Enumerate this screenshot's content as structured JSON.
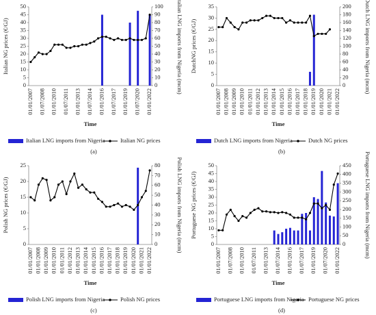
{
  "chart_data": [
    {
      "type": "bar_line",
      "panel_label": "(a)",
      "x_label": "Time",
      "y_label": "Italian NG prices (€/GJ)",
      "y2_label": "Italian LNG imports from Nigeria (mcm)",
      "categories": [
        "01/01/2007",
        null,
        null,
        "01/07/2008",
        null,
        null,
        "01/01/2010",
        null,
        null,
        "01/07/2011",
        null,
        null,
        "01/01/2013",
        null,
        null,
        "01/07/2014",
        null,
        null,
        "01/01/2016",
        null,
        null,
        "01/07/2017",
        null,
        null,
        "01/01/2019",
        null,
        null,
        "01/07/2020",
        null,
        null,
        "01/01/2022"
      ],
      "series": [
        {
          "name": "Italian LNG imports from Nigeria",
          "color": "#2424d4",
          "kind": "bar",
          "axis": "y2",
          "values": [
            null,
            null,
            null,
            null,
            null,
            null,
            null,
            null,
            null,
            null,
            null,
            null,
            null,
            null,
            null,
            null,
            null,
            null,
            90,
            null,
            null,
            null,
            null,
            null,
            null,
            80,
            null,
            95,
            null,
            null,
            90
          ]
        },
        {
          "name": "Italian NG prices",
          "color": "#000000",
          "kind": "line",
          "axis": "y",
          "values": [
            15,
            18,
            21,
            20,
            20,
            22,
            26,
            26,
            26,
            24,
            24,
            25,
            25,
            26,
            26,
            27,
            28,
            30,
            31,
            31,
            30,
            29,
            30,
            29,
            29,
            30,
            29,
            29,
            29,
            30,
            45
          ]
        }
      ],
      "ylim": [
        0,
        50
      ],
      "yticks": [
        0,
        5,
        10,
        15,
        20,
        25,
        30,
        35,
        40,
        45,
        50
      ],
      "y2lim": [
        0,
        100
      ],
      "y2ticks": [
        0,
        10,
        20,
        30,
        40,
        50,
        60,
        70,
        80,
        90,
        100
      ]
    },
    {
      "type": "bar_line",
      "panel_label": "(b)",
      "x_label": "Time",
      "y_label": "DutchNG prices (€/GJ)",
      "y2_label": "Dutch LNG imports from Nigeria (mcm)",
      "categories": [
        "01/01/2007",
        null,
        "01/01/2008",
        null,
        "01/01/2009",
        null,
        "01/01/2010",
        null,
        "01/01/2011",
        null,
        "01/01/2012",
        null,
        "01/01/2013",
        null,
        "01/01/2014",
        null,
        "01/01/2015",
        null,
        "01/01/2016",
        null,
        "01/01/2017",
        null,
        "01/01/2018",
        null,
        "01/01/2019",
        null,
        "01/01/2020",
        null,
        "01/01/2021",
        null,
        "01/01/2022"
      ],
      "series": [
        {
          "name": "Dutch LNG imports from Nigeria",
          "color": "#2424d4",
          "kind": "bar",
          "axis": "y2",
          "values": [
            null,
            null,
            null,
            null,
            null,
            null,
            null,
            null,
            null,
            null,
            null,
            null,
            null,
            null,
            null,
            null,
            null,
            null,
            null,
            null,
            null,
            null,
            null,
            35,
            180,
            null,
            null,
            null,
            null,
            null,
            null
          ]
        },
        {
          "name": "Dutch NG prices",
          "color": "#000000",
          "kind": "line",
          "axis": "y",
          "values": [
            26,
            26,
            30,
            28,
            26,
            25,
            28,
            28,
            29,
            29,
            29,
            30,
            31,
            31,
            30,
            30,
            30,
            28,
            29,
            28,
            28,
            28,
            28,
            31,
            22,
            23,
            23,
            23,
            25,
            null,
            null
          ]
        }
      ],
      "ylim": [
        0,
        35
      ],
      "yticks": [
        0,
        5,
        10,
        15,
        20,
        25,
        30,
        35
      ],
      "y2lim": [
        0,
        200
      ],
      "y2ticks": [
        0,
        20,
        40,
        60,
        80,
        100,
        120,
        140,
        160,
        180,
        200
      ]
    },
    {
      "type": "bar_line",
      "panel_label": "(c)",
      "x_label": "Time",
      "y_label": "Polish NG prices (€/GJ)",
      "y2_label": "Polish LNG imports from Nigeria (mcm)",
      "categories": [
        "01/01/2007",
        null,
        "01/01/2008",
        null,
        "01/01/2009",
        null,
        "01/01/2010",
        null,
        "01/01/2011",
        null,
        "01/01/2012",
        null,
        "01/01/2013",
        null,
        "01/01/2014",
        null,
        "01/01/2015",
        null,
        "01/01/2016",
        null,
        "01/01/2017",
        null,
        "01/01/2018",
        null,
        "01/01/2019",
        null,
        "01/01/2020",
        null,
        "01/01/2021",
        null,
        "01/01/2022"
      ],
      "series": [
        {
          "name": "Polish LNG imports from Nigeria",
          "color": "#2424d4",
          "kind": "bar",
          "axis": "y2",
          "values": [
            null,
            null,
            null,
            null,
            null,
            null,
            null,
            null,
            null,
            null,
            null,
            null,
            null,
            null,
            null,
            null,
            null,
            null,
            null,
            null,
            null,
            null,
            null,
            null,
            null,
            null,
            null,
            78,
            null,
            null,
            null
          ]
        },
        {
          "name": "Polish NG prices",
          "color": "#000000",
          "kind": "line",
          "axis": "y",
          "values": [
            15,
            14,
            19,
            21,
            20.5,
            14,
            15,
            19,
            20,
            16,
            20,
            22.5,
            18,
            19,
            17.5,
            16.5,
            16.5,
            14.5,
            13.5,
            12,
            12,
            12.5,
            13,
            12,
            12.5,
            12,
            11,
            12.5,
            15,
            17,
            23.5
          ]
        }
      ],
      "ylim": [
        0,
        25
      ],
      "yticks": [
        0,
        5,
        10,
        15,
        20,
        25
      ],
      "y2lim": [
        0,
        80
      ],
      "y2ticks": [
        0,
        10,
        20,
        30,
        40,
        50,
        60,
        70,
        80
      ]
    },
    {
      "type": "bar_line",
      "panel_label": "(d)",
      "x_label": "Time",
      "y_label": "Portuguese NG prices (€/GJ)",
      "y2_label": "Portuguese LNG imports from Nigeria (mcm)",
      "categories": [
        "01/01/2007",
        null,
        null,
        "01/07/2008",
        null,
        null,
        "01/01/2010",
        null,
        null,
        "01/07/2011",
        null,
        null,
        "01/01/2013",
        null,
        null,
        "01/07/2014",
        null,
        null,
        "01/01/2016",
        null,
        null,
        "01/07/2017",
        null,
        null,
        "01/01/2019",
        null,
        null,
        "01/07/2020",
        null,
        null,
        "01/01/2022"
      ],
      "series": [
        {
          "name": "Portuguese LNG imports from Nigeria",
          "color": "#2424d4",
          "kind": "bar",
          "axis": "y2",
          "values": [
            null,
            null,
            null,
            null,
            null,
            null,
            null,
            null,
            null,
            null,
            null,
            null,
            null,
            null,
            80,
            60,
            70,
            90,
            95,
            80,
            80,
            175,
            180,
            80,
            270,
            260,
            420,
            240,
            165,
            160,
            350
          ]
        },
        {
          "name": "Portuguese NG prices",
          "color": "#000000",
          "kind": "line",
          "axis": "y",
          "values": [
            9,
            9,
            19,
            22,
            18,
            15,
            18,
            17,
            20,
            22,
            23,
            21,
            21,
            20.5,
            20.5,
            20,
            20.5,
            20,
            19,
            17,
            17,
            17,
            16,
            20,
            26,
            26,
            23,
            25,
            22,
            38,
            45
          ]
        }
      ],
      "ylim": [
        0,
        50
      ],
      "yticks": [
        0,
        5,
        10,
        15,
        20,
        25,
        30,
        35,
        40,
        45,
        50
      ],
      "y2lim": [
        0,
        450
      ],
      "y2ticks": [
        0,
        50,
        100,
        150,
        200,
        250,
        300,
        350,
        400,
        450
      ]
    }
  ]
}
